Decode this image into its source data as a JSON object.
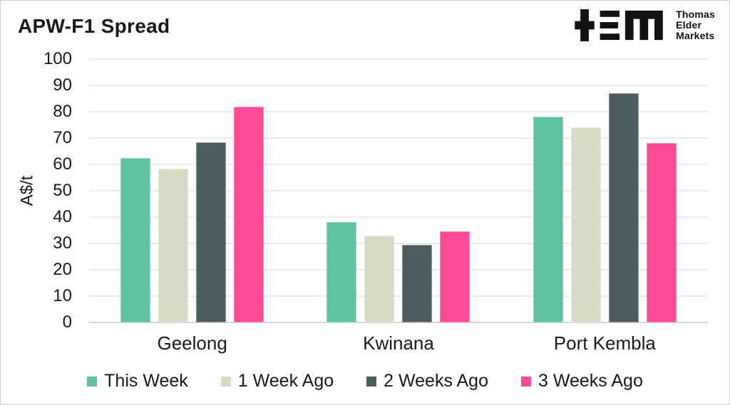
{
  "title": "APW-F1 Spread",
  "logo": {
    "lines": [
      "Thomas",
      "Elder",
      "Markets"
    ]
  },
  "chart_data": {
    "type": "bar",
    "title": "APW-F1 Spread",
    "categories": [
      "Geelong",
      "Kwinana",
      "Port Kembla"
    ],
    "series": [
      {
        "name": "This Week",
        "color": "#5FC2A2",
        "values": [
          62.5,
          38,
          78
        ]
      },
      {
        "name": "1 Week Ago",
        "color": "#D8DAC3",
        "values": [
          58.5,
          33,
          74
        ]
      },
      {
        "name": "2 Weeks Ago",
        "color": "#4B5D5F",
        "values": [
          68.5,
          29.5,
          87
        ]
      },
      {
        "name": "3 Weeks Ago",
        "color": "#FD4A96",
        "values": [
          82,
          34.5,
          68
        ]
      }
    ],
    "xlabel": "",
    "ylabel": "A$/t",
    "ylim": [
      0,
      100
    ],
    "yticks": [
      0,
      10,
      20,
      30,
      40,
      50,
      60,
      70,
      80,
      90,
      100
    ],
    "grid": true,
    "legend_position": "bottom",
    "colors": {
      "text": "#1a1a1a",
      "gridline": "#ebebeb",
      "baseline": "#d8d8d8",
      "logo": "#111111"
    }
  }
}
